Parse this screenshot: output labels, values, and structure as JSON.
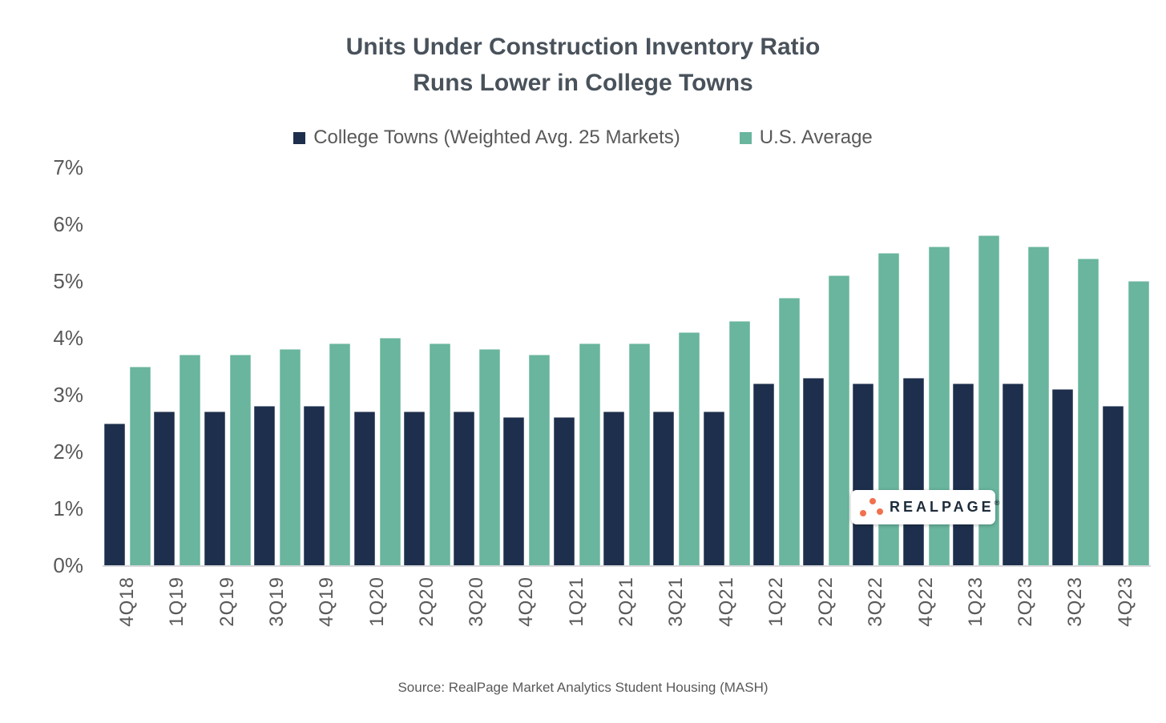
{
  "title": {
    "line1": "Units Under Construction Inventory Ratio",
    "line2": "Runs Lower in College Towns"
  },
  "y_axis": {
    "ticks": [
      "7%",
      "6%",
      "5%",
      "4%",
      "3%",
      "2%",
      "1%",
      "0%"
    ]
  },
  "source": {
    "text": "Source: RealPage Market Analytics Student Housing (MASH)"
  },
  "logo": {
    "text": "REALPAGE",
    "trademark": "®",
    "dot_color": "#F0714E",
    "text_color": "#1D2B3A"
  },
  "colors": {
    "college_towns": "#1D2F4C",
    "us_average": "#69B59D",
    "axis_text": "#595959",
    "title_text": "#49525B"
  },
  "chart_data": {
    "type": "bar",
    "title": "Units Under Construction Inventory Ratio Runs Lower in College Towns",
    "xlabel": "",
    "ylabel": "",
    "ylim": [
      0,
      7
    ],
    "grid": false,
    "legend_position": "top",
    "y_tick_format": "percent",
    "categories": [
      "4Q18",
      "1Q19",
      "2Q19",
      "3Q19",
      "4Q19",
      "1Q20",
      "2Q20",
      "3Q20",
      "4Q20",
      "1Q21",
      "2Q21",
      "3Q21",
      "4Q21",
      "1Q22",
      "2Q22",
      "3Q22",
      "4Q22",
      "1Q23",
      "2Q23",
      "3Q23",
      "4Q23"
    ],
    "series": [
      {
        "name": "College Towns (Weighted Avg. 25 Markets)",
        "color": "#1D2F4C",
        "values": [
          2.5,
          2.7,
          2.7,
          2.8,
          2.8,
          2.7,
          2.7,
          2.7,
          2.6,
          2.6,
          2.7,
          2.7,
          2.7,
          3.2,
          3.3,
          3.2,
          3.3,
          3.2,
          3.2,
          3.1,
          2.8
        ]
      },
      {
        "name": "U.S. Average",
        "color": "#69B59D",
        "values": [
          3.5,
          3.7,
          3.7,
          3.8,
          3.9,
          4.0,
          3.9,
          3.8,
          3.7,
          3.9,
          3.9,
          4.1,
          4.3,
          4.7,
          5.1,
          5.5,
          5.6,
          5.8,
          5.6,
          5.4,
          5.0
        ]
      }
    ]
  }
}
